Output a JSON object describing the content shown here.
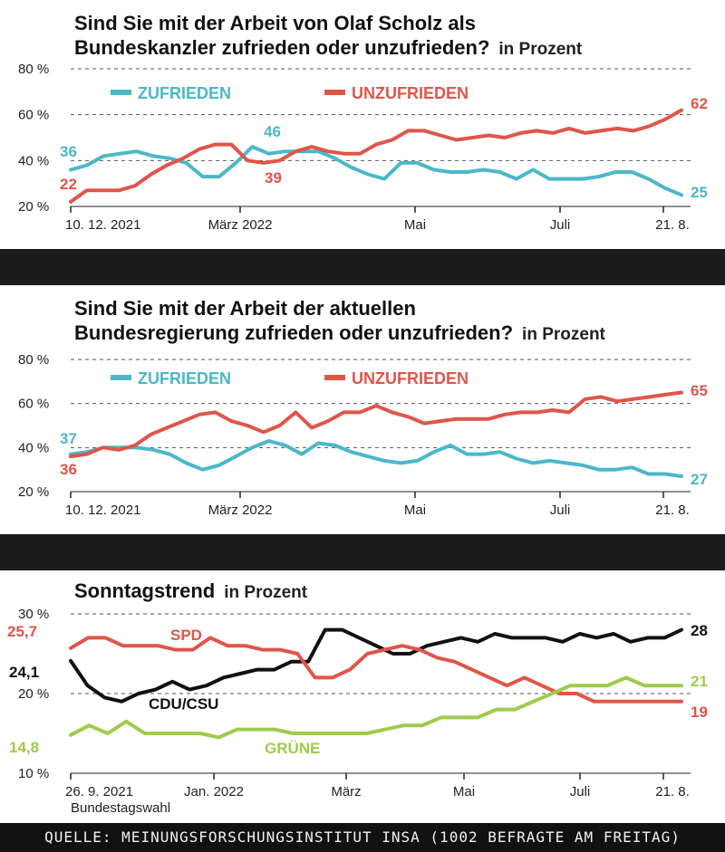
{
  "colors": {
    "zufrieden": "#4ab8c8",
    "unzufrieden": "#e0554a",
    "cdu": "#111111",
    "spd": "#e0554a",
    "gruene": "#9fcb4a"
  },
  "source": "QUELLE: MEINUNGSFORSCHUNGSINSTITUT INSA (1002 BEFRAGTE AM FREITAG)",
  "chart_data": [
    {
      "type": "line",
      "title_line1": "Sind Sie mit der Arbeit von Olaf Scholz als",
      "title_line2": "Bundeskanzler zufrieden oder unzufrieden?",
      "unit": "in Prozent",
      "ylim": [
        20,
        80
      ],
      "y_ticks": [
        "80 %",
        "60 %",
        "40 %",
        "20 %"
      ],
      "x_ticks": [
        "10. 12. 2021",
        "März 2022",
        "Mai",
        "Juli",
        "21. 8."
      ],
      "legend_position": "top",
      "series": [
        {
          "name": "ZUFRIEDEN",
          "color": "#4ab8c8",
          "values": [
            36,
            38,
            42,
            43,
            44,
            42,
            41,
            39,
            33,
            33,
            39,
            46,
            43,
            44,
            44,
            44,
            41,
            37,
            34,
            32,
            39,
            39,
            36,
            35,
            35,
            36,
            35,
            32,
            36,
            32,
            32,
            32,
            33,
            35,
            35,
            32,
            28,
            25
          ],
          "start_label": "36",
          "end_label": "25",
          "peak_label": "46",
          "peak_index": 11
        },
        {
          "name": "UNZUFRIEDEN",
          "color": "#e0554a",
          "values": [
            22,
            27,
            27,
            27,
            29,
            34,
            38,
            41,
            45,
            47,
            47,
            40,
            39,
            40,
            44,
            46,
            44,
            43,
            43,
            47,
            49,
            53,
            53,
            51,
            49,
            50,
            51,
            50,
            52,
            53,
            52,
            54,
            52,
            53,
            54,
            53,
            55,
            58,
            62
          ],
          "start_label": "22",
          "end_label": "62",
          "low_label": "39",
          "low_index": 12
        }
      ]
    },
    {
      "type": "line",
      "title_line1": "Sind Sie mit der Arbeit der aktuellen",
      "title_line2": "Bundesregierung zufrieden oder unzufrieden?",
      "unit": "in Prozent",
      "ylim": [
        20,
        80
      ],
      "y_ticks": [
        "80 %",
        "60 %",
        "40 %",
        "20 %"
      ],
      "x_ticks": [
        "10. 12. 2021",
        "März 2022",
        "Mai",
        "Juli",
        "21. 8."
      ],
      "legend_position": "top",
      "series": [
        {
          "name": "ZUFRIEDEN",
          "color": "#4ab8c8",
          "values": [
            37,
            38,
            40,
            40,
            40,
            39,
            37,
            33,
            30,
            32,
            36,
            40,
            43,
            41,
            37,
            42,
            41,
            38,
            36,
            34,
            33,
            34,
            38,
            41,
            37,
            37,
            38,
            35,
            33,
            34,
            33,
            32,
            30,
            30,
            31,
            28,
            28,
            27
          ],
          "start_label": "37",
          "end_label": "27"
        },
        {
          "name": "UNZUFRIEDEN",
          "color": "#e0554a",
          "values": [
            36,
            37,
            40,
            39,
            41,
            46,
            49,
            52,
            55,
            56,
            52,
            50,
            47,
            50,
            56,
            49,
            52,
            56,
            56,
            59,
            56,
            54,
            51,
            52,
            53,
            53,
            53,
            55,
            56,
            56,
            57,
            56,
            62,
            63,
            61,
            62,
            63,
            64,
            65
          ],
          "start_label": "36",
          "end_label": "65"
        }
      ]
    },
    {
      "type": "line",
      "title": "Sonntagstrend",
      "unit": "in Prozent",
      "ylim": [
        10,
        30
      ],
      "y_ticks": [
        "30 %",
        "20 %",
        "10 %"
      ],
      "x_ticks": [
        "26. 9. 2021",
        "Jan. 2022",
        "März",
        "Mai",
        "Juli",
        "21. 8."
      ],
      "x_sublabel": "Bundestagswahl",
      "series": [
        {
          "name": "CDU/CSU",
          "color": "#111111",
          "values": [
            24.1,
            21,
            19.5,
            19,
            20,
            20.5,
            21.5,
            20.5,
            21,
            22,
            22.5,
            23,
            23,
            24,
            24,
            28,
            28,
            27,
            26,
            25,
            25,
            26,
            26.5,
            27,
            26.5,
            27.5,
            27,
            27,
            27,
            26.5,
            27.5,
            27,
            27.5,
            26.5,
            27,
            27,
            28
          ],
          "start_label": "24,1",
          "end_label": "28"
        },
        {
          "name": "SPD",
          "color": "#e0554a",
          "values": [
            25.7,
            27,
            27,
            26,
            26,
            26,
            25.5,
            25.5,
            27,
            26,
            26,
            25.5,
            25.5,
            25,
            22,
            22,
            23,
            25,
            25.5,
            26,
            25.5,
            24.5,
            24,
            23,
            22,
            21,
            22,
            21,
            20,
            20,
            19,
            19,
            19,
            19,
            19,
            19
          ],
          "start_label": "25,7",
          "end_label": "19"
        },
        {
          "name": "GRÜNE",
          "color": "#9fcb4a",
          "values": [
            14.8,
            16,
            15,
            16.5,
            15,
            15,
            15,
            15,
            14.5,
            15.5,
            15.5,
            15.5,
            15,
            15,
            15,
            15,
            15,
            15.5,
            16,
            16,
            17,
            17,
            17,
            18,
            18,
            19,
            20,
            21,
            21,
            21,
            22,
            21,
            21,
            21
          ],
          "start_label": "14,8",
          "end_label": "21"
        }
      ]
    }
  ]
}
